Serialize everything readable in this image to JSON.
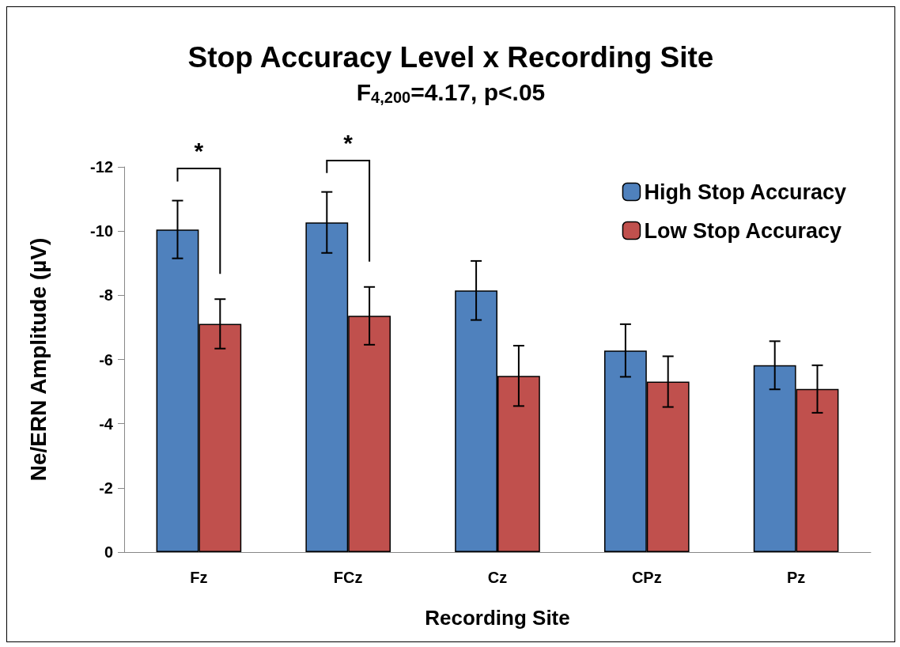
{
  "chart_data": {
    "type": "bar",
    "title": "Stop Accuracy Level x Recording Site",
    "subtitle": "F$_{4,200}$=4.17, p<.05",
    "xlabel": "Recording Site",
    "ylabel": "Ne/ERN Amplitude (µV)",
    "categories": [
      "Fz",
      "FCz",
      "Cz",
      "CPz",
      "Pz"
    ],
    "series": [
      {
        "name": "High Stop Accuracy",
        "color": "#4f81bd",
        "values": [
          -10.05,
          -10.27,
          -8.15,
          -6.28,
          -5.82
        ],
        "errors": [
          0.9,
          0.95,
          0.92,
          0.82,
          0.75
        ]
      },
      {
        "name": "Low Stop Accuracy",
        "color": "#c0504d",
        "values": [
          -7.11,
          -7.36,
          -5.49,
          -5.31,
          -5.08
        ],
        "errors": [
          0.77,
          0.9,
          0.94,
          0.79,
          0.74
        ]
      }
    ],
    "ylim": [
      0,
      -12
    ],
    "yticks": [
      0,
      -2,
      -4,
      -6,
      -8,
      -10,
      -12
    ],
    "annotations": [
      "*",
      "*"
    ],
    "legend": "top right",
    "grid": false
  }
}
